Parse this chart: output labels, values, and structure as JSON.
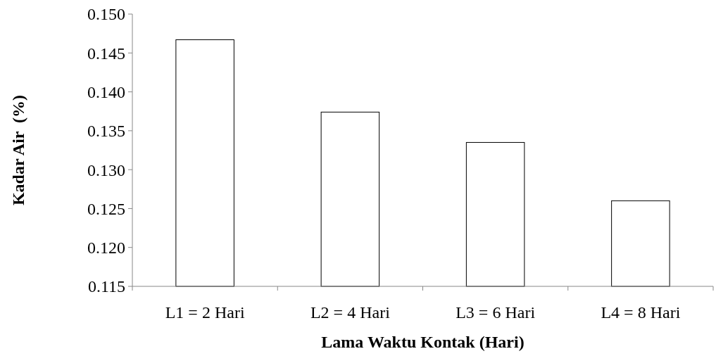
{
  "chart_data": {
    "type": "bar",
    "xlabel": "Lama Waktu Kontak (Hari)",
    "ylabel": "Kadar Air  (%)",
    "categories": [
      "L1 = 2 Hari",
      "L2 = 4 Hari",
      "L3 = 6 Hari",
      "L4 = 8 Hari"
    ],
    "values": [
      0.1467,
      0.1374,
      0.1335,
      0.126
    ],
    "color": "#ffffff",
    "ylim": [
      0.115,
      0.15
    ],
    "yticks": [
      {
        "value": 0.115,
        "label": "0.115"
      },
      {
        "value": 0.12,
        "label": "0.120"
      },
      {
        "value": 0.125,
        "label": "0.125"
      },
      {
        "value": 0.13,
        "label": "0.130"
      },
      {
        "value": 0.135,
        "label": "0.135"
      },
      {
        "value": 0.14,
        "label": "0.140"
      },
      {
        "value": 0.145,
        "label": "0.145"
      },
      {
        "value": 0.15,
        "label": "0.150"
      }
    ],
    "grid": false
  }
}
